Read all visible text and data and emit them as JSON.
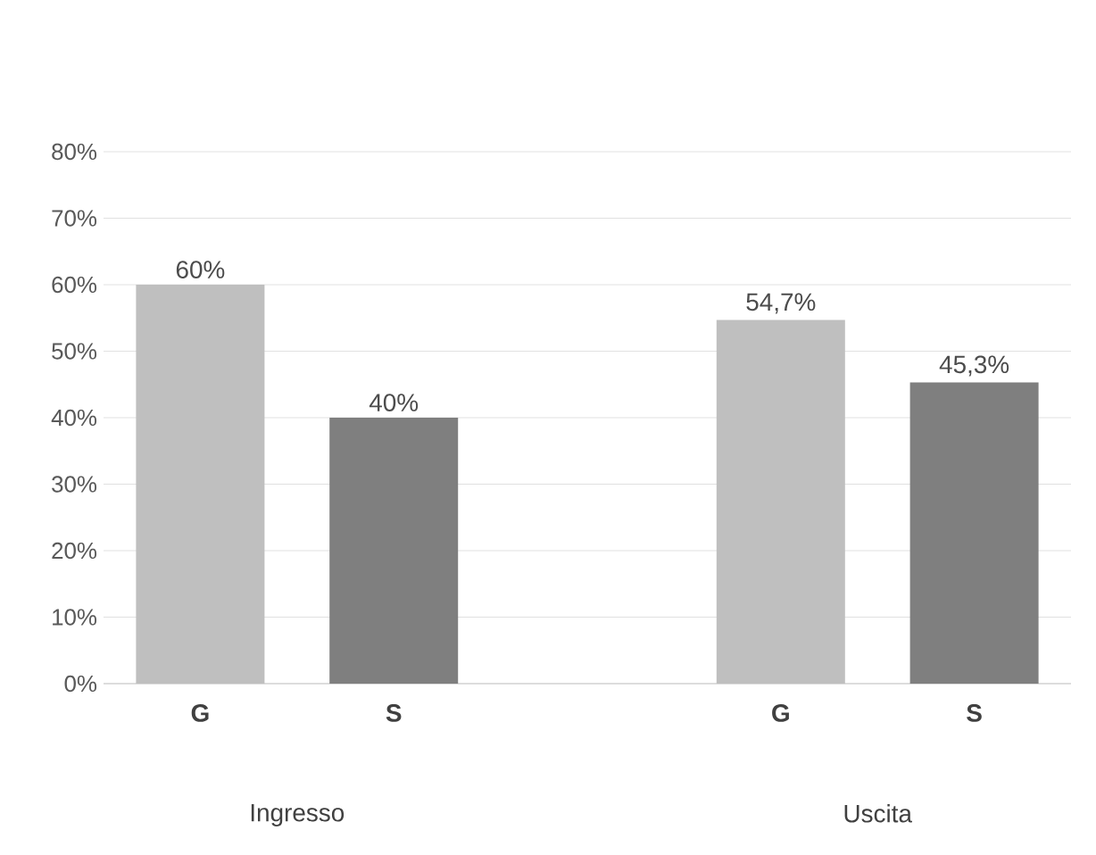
{
  "chart_data": {
    "type": "bar",
    "categories": [
      "G",
      "S",
      null,
      "G",
      "S"
    ],
    "values": [
      60,
      40,
      null,
      54.7,
      45.3
    ],
    "colors": [
      "#bfbfbf",
      "#7f7f7f",
      null,
      "#bfbfbf",
      "#7f7f7f"
    ],
    "value_labels": [
      "60%",
      "40%",
      null,
      "54,7%",
      "45,3%"
    ],
    "ylim": [
      0,
      80
    ],
    "yticks": [
      {
        "value": 0,
        "label": "0%"
      },
      {
        "value": 10,
        "label": "10%"
      },
      {
        "value": 20,
        "label": "20%"
      },
      {
        "value": 30,
        "label": "30%"
      },
      {
        "value": 40,
        "label": "40%"
      },
      {
        "value": 50,
        "label": "50%"
      },
      {
        "value": 60,
        "label": "60%"
      },
      {
        "value": 70,
        "label": "70%"
      },
      {
        "value": 80,
        "label": "80%"
      }
    ],
    "grid": "y",
    "annotations": [
      "Ingresso",
      "Uscita"
    ]
  }
}
